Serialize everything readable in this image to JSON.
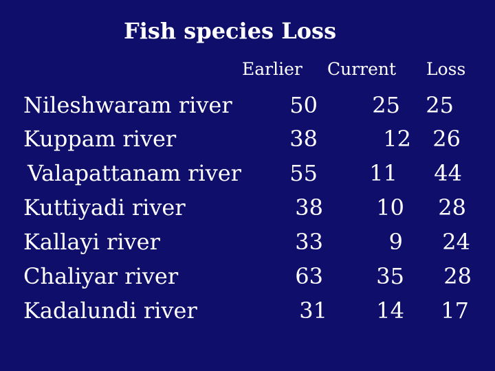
{
  "slide": {
    "title": "Fish species Loss",
    "headers": {
      "earlier": "Earlier",
      "current": "Current",
      "loss": "Loss"
    },
    "rows": [
      {
        "river": "Nileshwaram river",
        "earlier": "50",
        "current": "25",
        "loss": "25"
      },
      {
        "river": "Kuppam river",
        "earlier": "38",
        "current": "12",
        "loss": "26"
      },
      {
        "river": "Valapattanam river",
        "earlier": "55",
        "current": "11",
        "loss": "44"
      },
      {
        "river": "Kuttiyadi river",
        "earlier": "38",
        "current": "10",
        "loss": "28"
      },
      {
        "river": "Kallayi river",
        "earlier": "33",
        "current": "9",
        "loss": "24"
      },
      {
        "river": "Chaliyar river",
        "earlier": "63",
        "current": "35",
        "loss": "28"
      },
      {
        "river": "Kadalundi river",
        "earlier": "31",
        "current": "14",
        "loss": "17"
      }
    ]
  },
  "colors": {
    "background": "#0f0f6b",
    "text": "#ffffff"
  }
}
